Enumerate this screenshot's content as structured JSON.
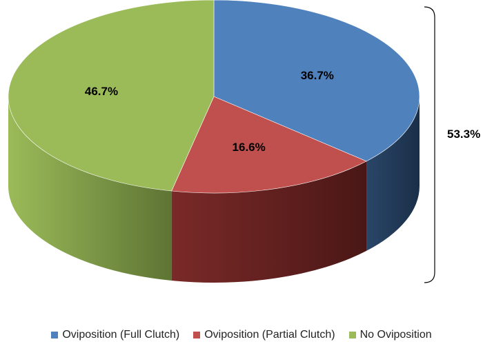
{
  "chart_data": {
    "type": "pie",
    "title": "",
    "categories": [
      "Oviposition (Full Clutch)",
      "Oviposition (Partial Clutch)",
      "No Oviposition"
    ],
    "values": [
      36.7,
      16.6,
      46.7
    ],
    "labels": [
      "36.7%",
      "16.6%",
      "46.7%"
    ],
    "colors": [
      "#4F81BD",
      "#C0504D",
      "#9BBB59"
    ],
    "legend_position": "bottom",
    "style": "3d",
    "bracket": {
      "label": "53.3%",
      "spans": [
        "Oviposition (Full Clutch)",
        "Oviposition (Partial Clutch)"
      ]
    }
  }
}
